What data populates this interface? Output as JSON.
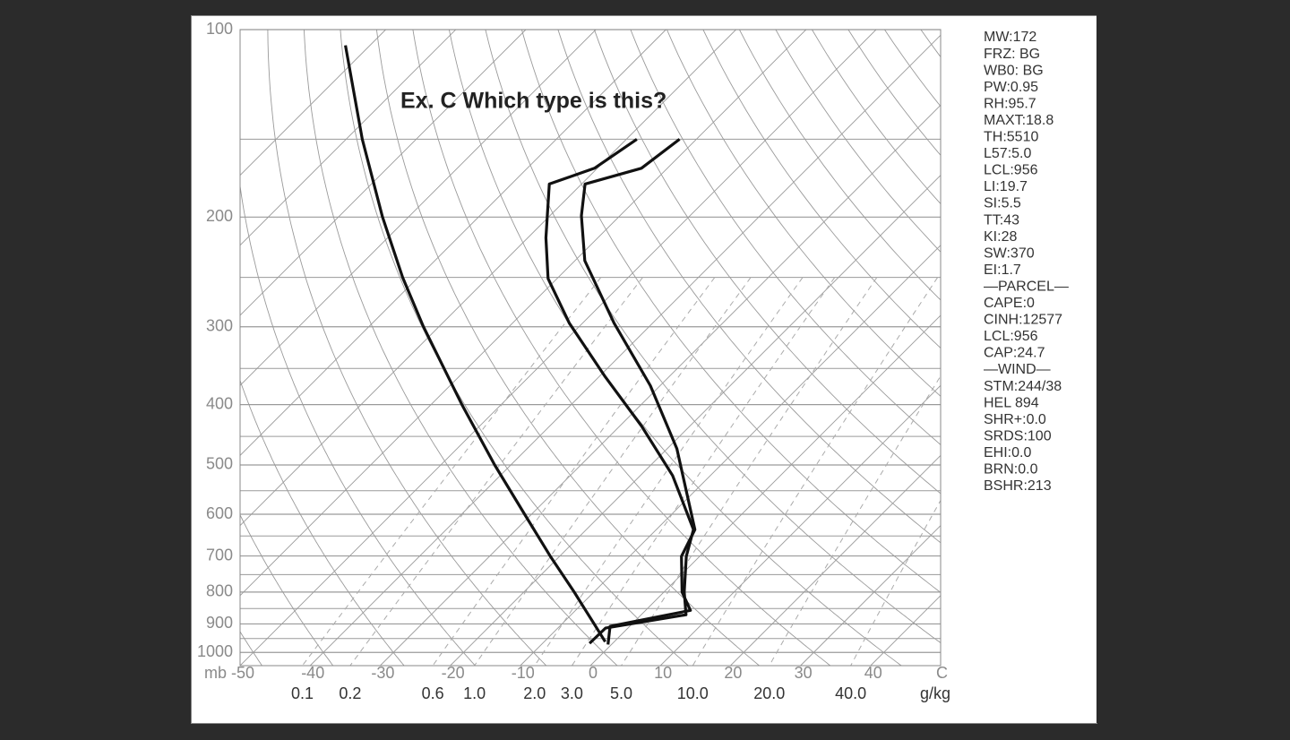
{
  "chart_data": {
    "type": "skewt",
    "title": "Ex. C Which type is this?",
    "y_label": "mb",
    "x_label": "C",
    "mixing_ratio_label": "g/kg",
    "ylim": [
      100,
      1050
    ],
    "log_y": true,
    "yticks": [
      100,
      200,
      300,
      400,
      500,
      600,
      700,
      800,
      900,
      1000
    ],
    "minor_yticks": [
      150,
      250,
      350,
      450,
      550,
      650,
      750,
      850,
      950
    ],
    "xlim": [
      -50,
      50
    ],
    "xticks": [
      -50,
      -40,
      -30,
      -20,
      -10,
      0,
      10,
      20,
      30,
      40
    ],
    "skew": 45,
    "isotherms": [
      -120,
      -110,
      -100,
      -90,
      -80,
      -70,
      -60,
      -50,
      -40,
      -30,
      -20,
      -10,
      0,
      10,
      20,
      30,
      40
    ],
    "isentropes": [
      -50,
      -40,
      -30,
      -20,
      -10,
      0,
      10,
      20,
      30,
      40,
      50,
      60,
      70,
      80,
      90,
      100,
      110,
      120,
      130,
      140,
      150,
      160,
      170,
      180
    ],
    "mixing_ratio_lines": [
      0.1,
      0.2,
      0.6,
      {
        "value": 1,
        "label": "1.0"
      },
      {
        "value": 2,
        "label": "2.0"
      },
      {
        "value": 3,
        "label": "3.0"
      },
      {
        "value": 5,
        "label": "5.0"
      },
      {
        "value": 10,
        "label": "10.0"
      },
      {
        "value": 20,
        "label": "20.0"
      },
      {
        "value": 40,
        "label": "40.0"
      }
    ],
    "grid_color": "#9a9a9a",
    "series": [
      {
        "color": "#111111",
        "pressure": [
          106,
          150,
          200,
          250,
          300,
          400,
          500,
          600,
          700,
          800,
          850,
          900,
          961
        ],
        "values": [
          -123.5,
          -107.7,
          -93.7,
          -82.2,
          -72.2,
          -55.6,
          -42.3,
          -31.0,
          -21.4,
          -12.8,
          -9.0,
          -5.4,
          -1.3
        ]
      },
      {
        "color": "#111111",
        "pressure": [
          150,
          167,
          177,
          216,
          251,
          296,
          361,
          433,
          520,
          635,
          701,
          800,
          870,
          914,
          967
        ],
        "values": [
          -68.5,
          -70.4,
          -74.6,
          -67.4,
          -61.3,
          -51.9,
          -39.1,
          -26.9,
          -15.4,
          -4.7,
          -1.9,
          2.9,
          6.4,
          -3.2,
          -3.3
        ]
      },
      {
        "color": "#111111",
        "pressure": [
          150,
          167,
          177,
          199,
          235,
          296,
          373,
          471,
          635,
          701,
          800,
          856,
          908,
          971
        ],
        "values": [
          -62.4,
          -63.7,
          -69.5,
          -65.5,
          -58.6,
          -45.5,
          -31.4,
          -18.6,
          -4.5,
          -2.6,
          2.6,
          6.4,
          -2.8,
          -0.5
        ]
      }
    ],
    "indices": [
      "MW:172",
      "FRZ: BG",
      "WB0: BG",
      "PW:0.95",
      "RH:95.7",
      "MAXT:18.8",
      "TH:5510",
      "L57:5.0",
      "LCL:956",
      "LI:19.7",
      "SI:5.5",
      "TT:43",
      "KI:28",
      "SW:370",
      "EI:1.7",
      "—PARCEL—",
      "CAPE:0",
      "CINH:12577",
      "LCL:956",
      "CAP:24.7",
      "—WIND—",
      "STM:244/38",
      "HEL 894",
      "SHR+:0.0",
      "SRDS:100",
      "EHI:0.0",
      "BRN:0.0",
      "BSHR:213"
    ]
  }
}
